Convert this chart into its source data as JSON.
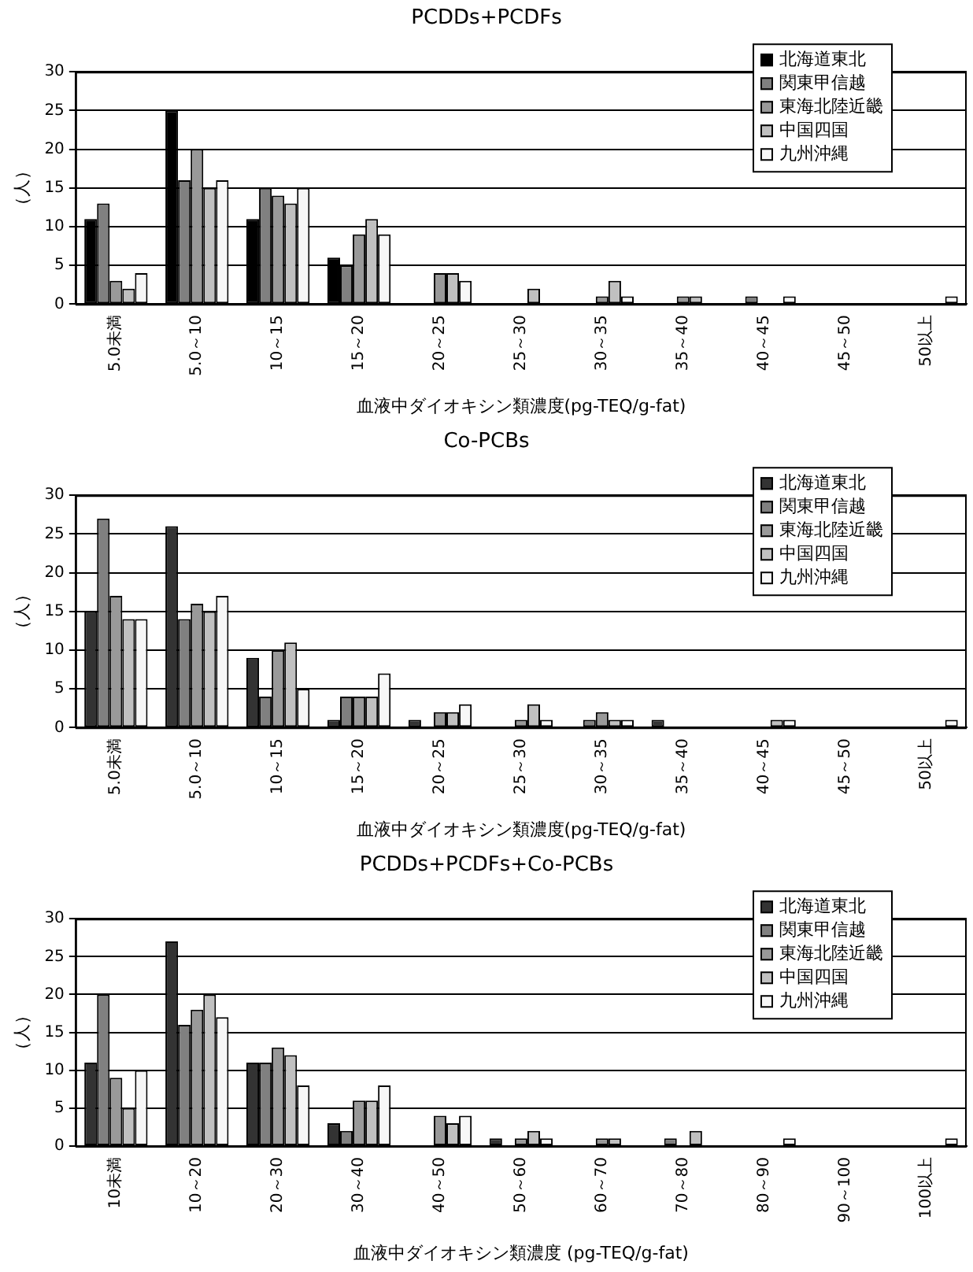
{
  "chart_data": [
    {
      "type": "bar",
      "title": "PCDDs+PCDFs",
      "xlabel": "血液中ダイオキシン類濃度(pg-TEQ/g-fat)",
      "ylabel": "（人）",
      "categories": [
        "5.0未満",
        "5.0～10",
        "10～15",
        "15～20",
        "20～25",
        "25～30",
        "30～35",
        "35～40",
        "40～45",
        "45～50",
        "50以上"
      ],
      "series": [
        {
          "name": "北海道東北",
          "color": "#000000",
          "values": [
            11,
            25,
            11,
            6,
            0,
            0,
            0,
            0,
            0,
            0,
            0
          ]
        },
        {
          "name": "関東甲信越",
          "color": "#808080",
          "values": [
            13,
            16,
            15,
            5,
            0,
            0,
            0,
            0,
            1,
            0,
            0
          ]
        },
        {
          "name": "東海北陸近畿",
          "color": "#999999",
          "values": [
            3,
            20,
            14,
            9,
            4,
            0,
            1,
            1,
            0,
            0,
            0
          ]
        },
        {
          "name": "中国四国",
          "color": "#c0c0c0",
          "values": [
            2,
            15,
            13,
            11,
            4,
            2,
            3,
            1,
            0,
            0,
            0
          ]
        },
        {
          "name": "九州沖縄",
          "color": "#f7f7f7",
          "values": [
            4,
            16,
            15,
            9,
            3,
            0,
            1,
            0,
            1,
            0,
            1
          ]
        }
      ],
      "ylim": [
        0,
        30
      ],
      "yticks": [
        0,
        5,
        10,
        15,
        20,
        25,
        30
      ],
      "grid": "y",
      "legend": "top right"
    },
    {
      "type": "bar",
      "title": "Co-PCBs",
      "xlabel": "血液中ダイオキシン類濃度(pg-TEQ/g-fat)",
      "ylabel": "（人）",
      "categories": [
        "5.0未満",
        "5.0～10",
        "10～15",
        "15～20",
        "20～25",
        "25～30",
        "30～35",
        "35～40",
        "40～45",
        "45～50",
        "50以上"
      ],
      "series": [
        {
          "name": "北海道東北",
          "color": "#333333",
          "values": [
            15,
            26,
            9,
            1,
            1,
            0,
            0,
            1,
            0,
            0,
            0
          ]
        },
        {
          "name": "関東甲信越",
          "color": "#808080",
          "values": [
            27,
            14,
            4,
            4,
            0,
            0,
            1,
            0,
            0,
            0,
            0
          ]
        },
        {
          "name": "東海北陸近畿",
          "color": "#999999",
          "values": [
            17,
            16,
            10,
            4,
            2,
            1,
            2,
            0,
            0,
            0,
            0
          ]
        },
        {
          "name": "中国四国",
          "color": "#c0c0c0",
          "values": [
            14,
            15,
            11,
            4,
            2,
            3,
            1,
            0,
            1,
            0,
            0
          ]
        },
        {
          "name": "九州沖縄",
          "color": "#f7f7f7",
          "values": [
            14,
            17,
            5,
            7,
            3,
            1,
            1,
            0,
            1,
            0,
            1
          ]
        }
      ],
      "ylim": [
        0,
        30
      ],
      "yticks": [
        0,
        5,
        10,
        15,
        20,
        25,
        30
      ],
      "grid": "y",
      "legend": "top right"
    },
    {
      "type": "bar",
      "title": "PCDDs+PCDFs+Co-PCBs",
      "xlabel": "血液中ダイオキシン類濃度 (pg-TEQ/g-fat)",
      "ylabel": "（人）",
      "categories": [
        "10未満",
        "10～20",
        "20～30",
        "30～40",
        "40～50",
        "50～60",
        "60～70",
        "70～80",
        "80～90",
        "90～100",
        "100以上"
      ],
      "series": [
        {
          "name": "北海道東北",
          "color": "#333333",
          "values": [
            11,
            27,
            11,
            3,
            0,
            1,
            0,
            0,
            0,
            0,
            0
          ]
        },
        {
          "name": "関東甲信越",
          "color": "#808080",
          "values": [
            20,
            16,
            11,
            2,
            0,
            0,
            0,
            1,
            0,
            0,
            0
          ]
        },
        {
          "name": "東海北陸近畿",
          "color": "#999999",
          "values": [
            9,
            18,
            13,
            6,
            4,
            1,
            1,
            0,
            0,
            0,
            0
          ]
        },
        {
          "name": "中国四国",
          "color": "#c0c0c0",
          "values": [
            5,
            20,
            12,
            6,
            3,
            2,
            1,
            2,
            0,
            0,
            0
          ]
        },
        {
          "name": "九州沖縄",
          "color": "#f7f7f7",
          "values": [
            10,
            17,
            8,
            8,
            4,
            1,
            0,
            0,
            1,
            0,
            1
          ]
        }
      ],
      "ylim": [
        0,
        30
      ],
      "yticks": [
        0,
        5,
        10,
        15,
        20,
        25,
        30
      ],
      "grid": "y",
      "legend": "top right"
    }
  ]
}
